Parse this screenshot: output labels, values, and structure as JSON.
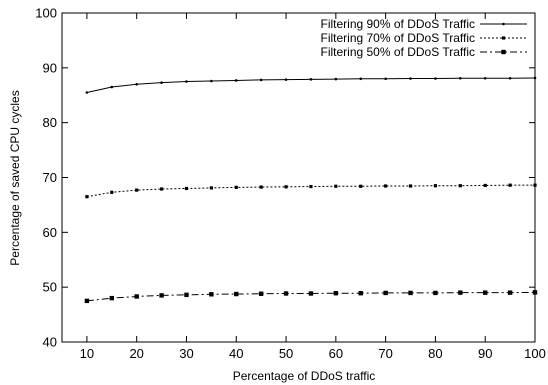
{
  "chart_data": {
    "type": "line",
    "title": "",
    "xlabel": "Percentage of DDoS traffic",
    "ylabel": "Percentage of saved CPU cycles",
    "xlim": [
      5,
      100
    ],
    "ylim": [
      40,
      100
    ],
    "xticks": [
      10,
      20,
      30,
      40,
      50,
      60,
      70,
      80,
      90,
      100
    ],
    "yticks": [
      40,
      50,
      60,
      70,
      80,
      90,
      100
    ],
    "grid": false,
    "legend_position": "top-right",
    "x": [
      10,
      15,
      20,
      25,
      30,
      35,
      40,
      45,
      50,
      55,
      60,
      65,
      70,
      75,
      80,
      85,
      90,
      95,
      100
    ],
    "series": [
      {
        "name": "Filtering 90% of DDoS Traffic",
        "line_style": "solid",
        "marker": "dot",
        "values": [
          85.5,
          86.5,
          87.0,
          87.3,
          87.5,
          87.6,
          87.7,
          87.8,
          87.85,
          87.9,
          87.95,
          88.0,
          88.0,
          88.05,
          88.05,
          88.1,
          88.1,
          88.1,
          88.15
        ]
      },
      {
        "name": "Filtering 70% of DDoS Traffic",
        "line_style": "dotted",
        "marker": "small-square",
        "values": [
          66.5,
          67.3,
          67.7,
          67.9,
          68.0,
          68.1,
          68.2,
          68.25,
          68.3,
          68.35,
          68.4,
          68.4,
          68.45,
          68.45,
          68.5,
          68.5,
          68.55,
          68.6,
          68.6
        ]
      },
      {
        "name": "Filtering 50% of DDoS Traffic",
        "line_style": "dash-dot",
        "marker": "square",
        "values": [
          47.5,
          48.0,
          48.3,
          48.5,
          48.6,
          48.7,
          48.75,
          48.8,
          48.85,
          48.85,
          48.9,
          48.9,
          48.95,
          48.95,
          48.95,
          49.0,
          49.0,
          49.0,
          49.05
        ]
      }
    ]
  }
}
